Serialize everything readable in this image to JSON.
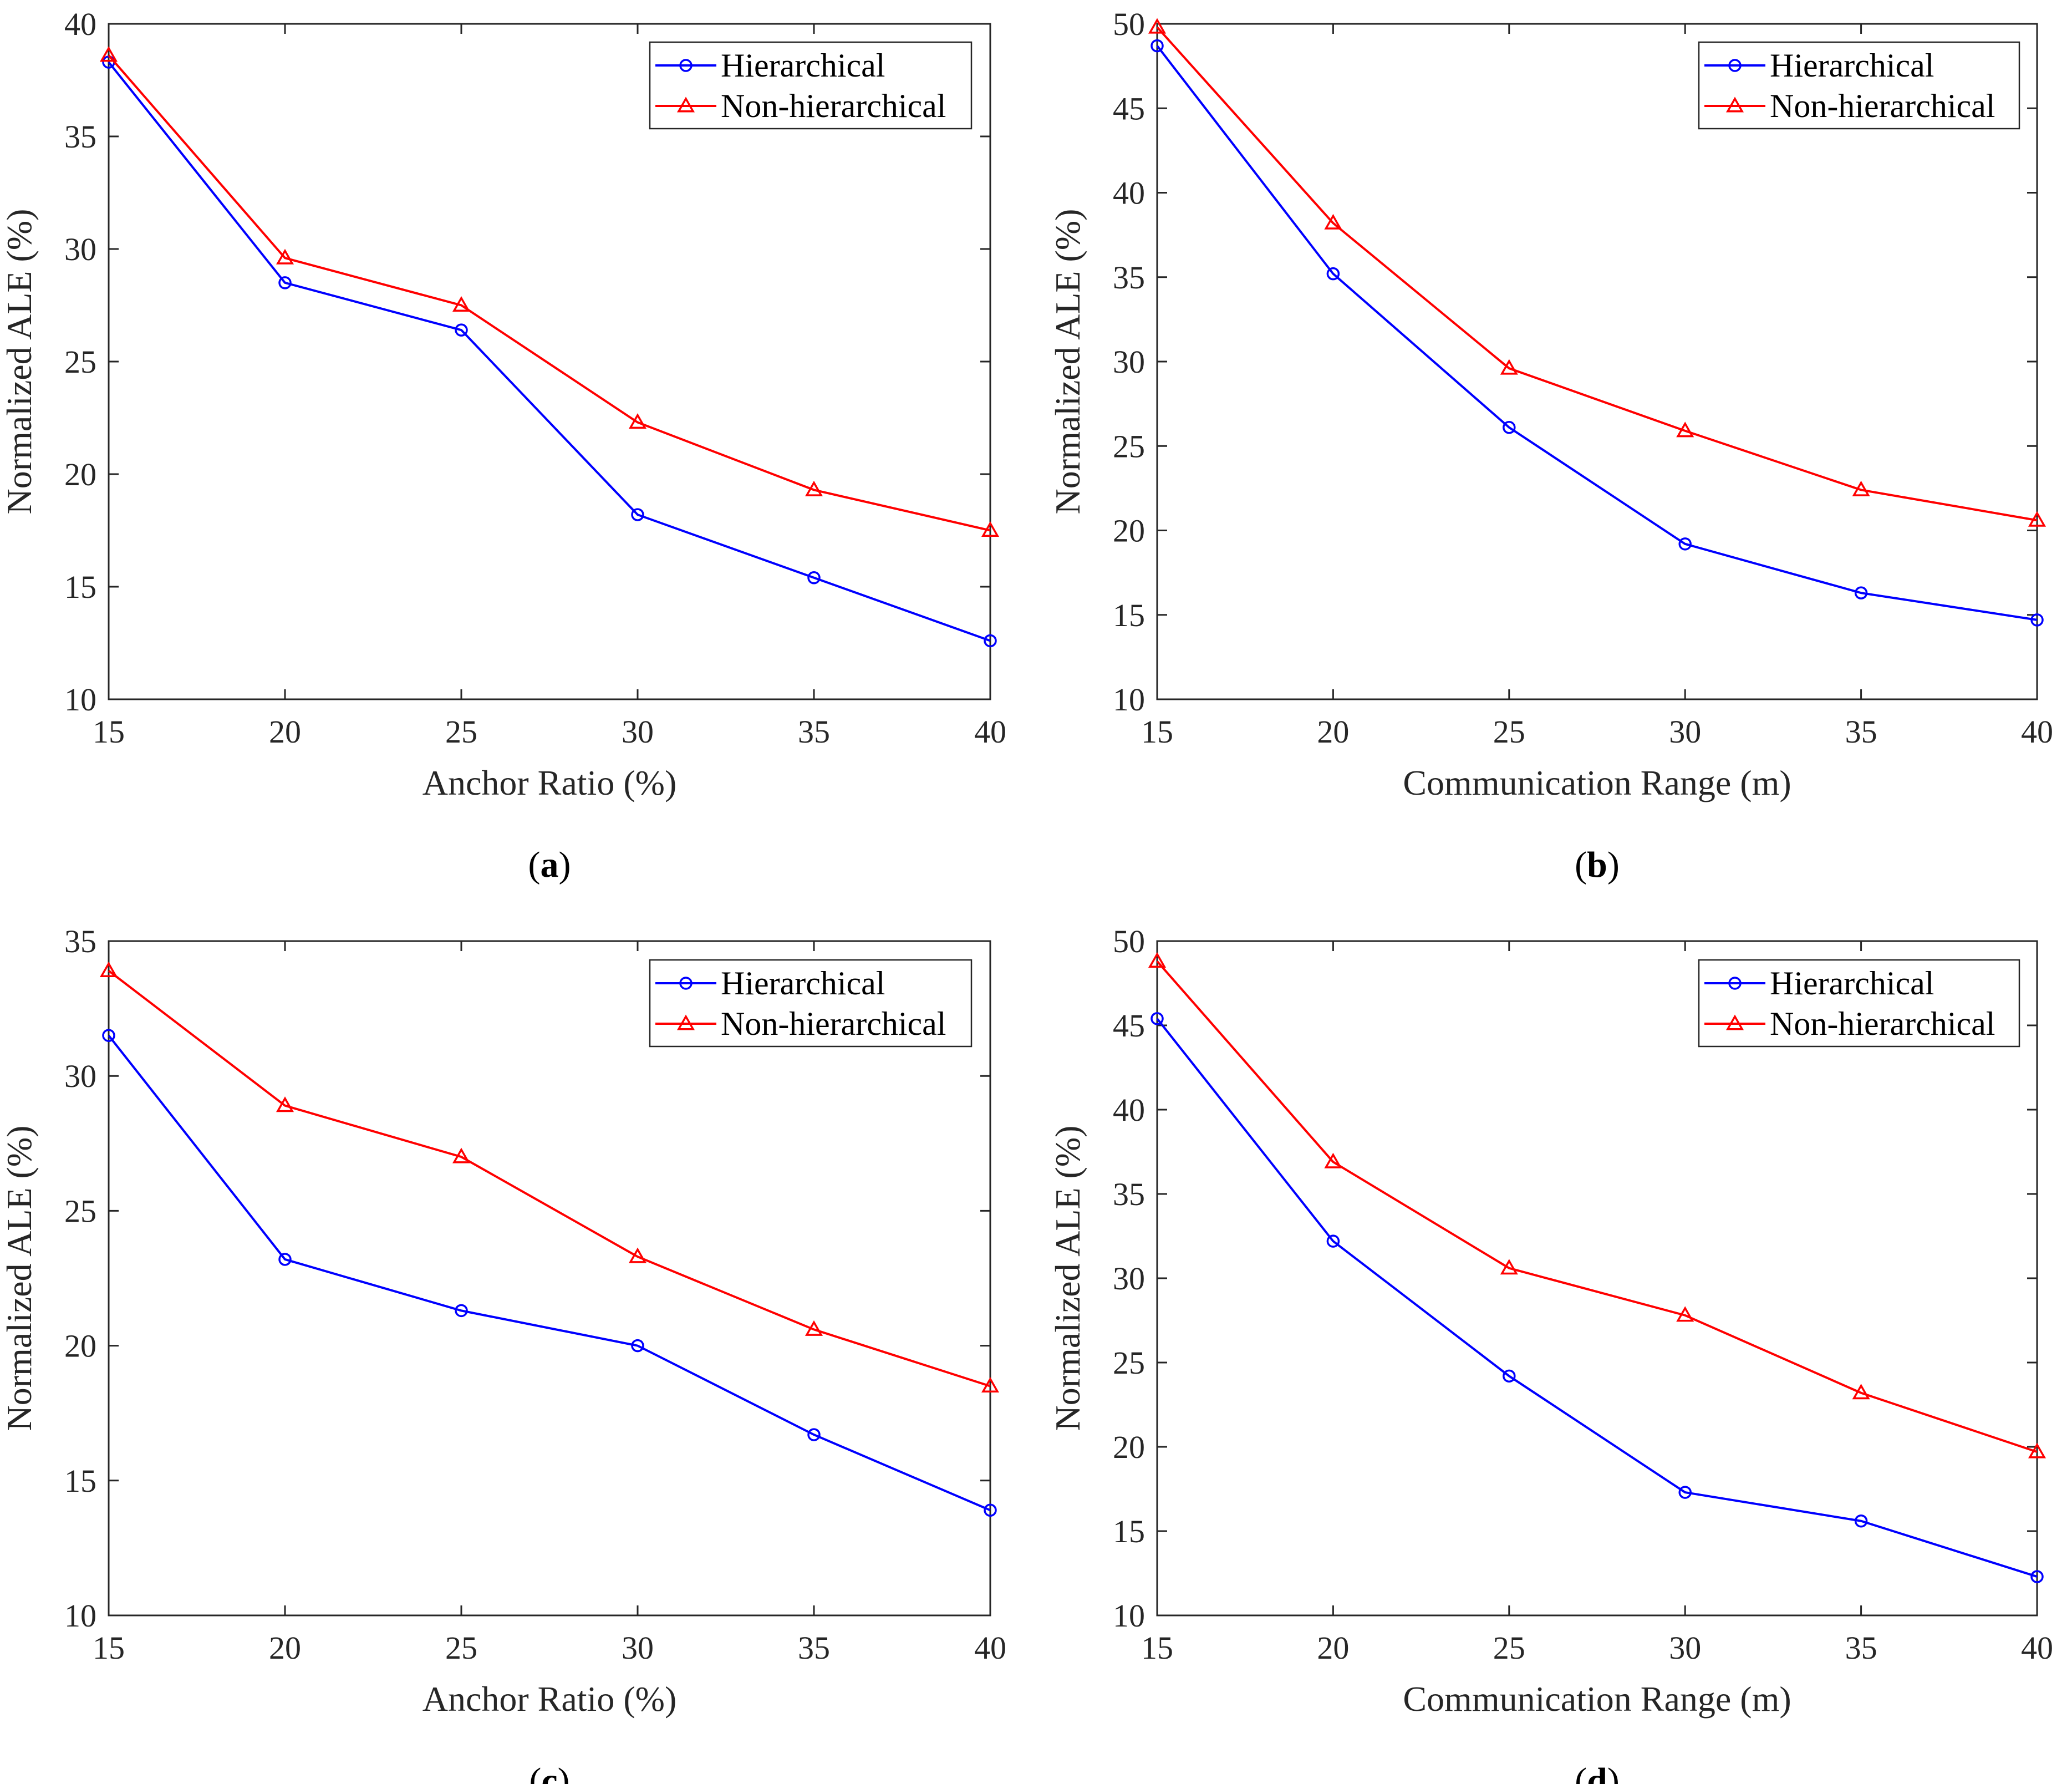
{
  "colors": {
    "hierarchical": "#0000ff",
    "non_hierarchical": "#ff0000",
    "axis": "#262626"
  },
  "chart_data": [
    {
      "type": "line",
      "panel_label": "a",
      "xlabel": "Anchor Ratio (%)",
      "ylabel": "Normalized ALE (%)",
      "x": [
        15,
        20,
        25,
        30,
        35,
        40
      ],
      "xlim": [
        15,
        40
      ],
      "ylim": [
        10,
        40
      ],
      "xticks": [
        15,
        20,
        25,
        30,
        35,
        40
      ],
      "yticks": [
        10,
        15,
        20,
        25,
        30,
        35,
        40
      ],
      "grid": false,
      "legend_position": "top-right",
      "series": [
        {
          "name": "Hierarchical",
          "marker": "circle",
          "values": [
            38.3,
            28.5,
            26.4,
            18.2,
            15.4,
            12.6
          ]
        },
        {
          "name": "Non-hierarchical",
          "marker": "triangle",
          "values": [
            38.6,
            29.6,
            27.5,
            22.3,
            19.3,
            17.5
          ]
        }
      ]
    },
    {
      "type": "line",
      "panel_label": "b",
      "xlabel": "Communication Range (m)",
      "ylabel": "Normalized ALE (%)",
      "x": [
        15,
        20,
        25,
        30,
        35,
        40
      ],
      "xlim": [
        15,
        40
      ],
      "ylim": [
        10,
        50
      ],
      "xticks": [
        15,
        20,
        25,
        30,
        35,
        40
      ],
      "yticks": [
        10,
        15,
        20,
        25,
        30,
        35,
        40,
        45,
        50
      ],
      "grid": false,
      "legend_position": "top-right",
      "series": [
        {
          "name": "Hierarchical",
          "marker": "circle",
          "values": [
            48.7,
            35.2,
            26.1,
            19.2,
            16.3,
            14.7
          ]
        },
        {
          "name": "Non-hierarchical",
          "marker": "triangle",
          "values": [
            49.8,
            38.2,
            29.6,
            25.9,
            22.4,
            20.6
          ]
        }
      ]
    },
    {
      "type": "line",
      "panel_label": "c",
      "xlabel": "Anchor Ratio (%)",
      "ylabel": "Normalized ALE (%)",
      "x": [
        15,
        20,
        25,
        30,
        35,
        40
      ],
      "xlim": [
        15,
        40
      ],
      "ylim": [
        10,
        35
      ],
      "xticks": [
        15,
        20,
        25,
        30,
        35,
        40
      ],
      "yticks": [
        10,
        15,
        20,
        25,
        30,
        35
      ],
      "grid": false,
      "legend_position": "top-right",
      "series": [
        {
          "name": "Hierarchical",
          "marker": "circle",
          "values": [
            31.5,
            23.2,
            21.3,
            20.0,
            16.7,
            13.9
          ]
        },
        {
          "name": "Non-hierarchical",
          "marker": "triangle",
          "values": [
            33.9,
            28.9,
            27.0,
            23.3,
            20.6,
            18.5
          ]
        }
      ]
    },
    {
      "type": "line",
      "panel_label": "d",
      "xlabel": "Communication Range (m)",
      "ylabel": "Normalized ALE (%)",
      "x": [
        15,
        20,
        25,
        30,
        35,
        40
      ],
      "xlim": [
        15,
        40
      ],
      "ylim": [
        10,
        50
      ],
      "xticks": [
        15,
        20,
        25,
        30,
        35,
        40
      ],
      "yticks": [
        10,
        15,
        20,
        25,
        30,
        35,
        40,
        45,
        50
      ],
      "grid": false,
      "legend_position": "top-right",
      "series": [
        {
          "name": "Hierarchical",
          "marker": "circle",
          "values": [
            45.4,
            32.2,
            24.2,
            17.3,
            15.6,
            12.3
          ]
        },
        {
          "name": "Non-hierarchical",
          "marker": "triangle",
          "values": [
            48.8,
            36.9,
            30.6,
            27.8,
            23.2,
            19.7
          ]
        }
      ]
    }
  ]
}
